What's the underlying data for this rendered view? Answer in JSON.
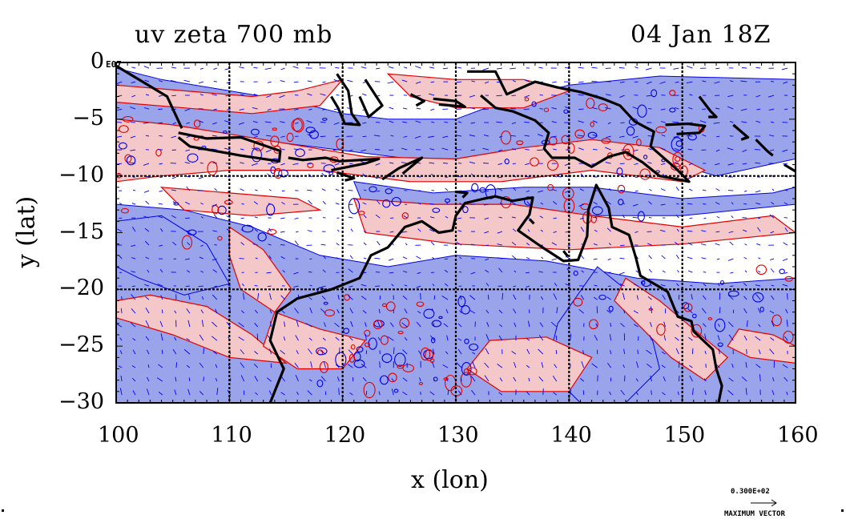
{
  "title_left": "uv zeta 700 mb",
  "title_right": "04 Jan 18Z",
  "xlabel": "x (lon)",
  "ylabel": "y (lat)",
  "corner_tag": "E07",
  "x_ticks": [
    "100",
    "110",
    "120",
    "130",
    "140",
    "150",
    "160"
  ],
  "y_ticks": [
    "0",
    "−5",
    "−10",
    "−15",
    "−20",
    "−25",
    "−30"
  ],
  "vector_legend": {
    "value": "0.300E+02",
    "label": "MAXIMUM VECTOR"
  },
  "colors": {
    "positive_fill": "#f4c8c8",
    "positive_contour": "#e00000",
    "negative_fill": "#9aa4ea",
    "negative_contour": "#0000e6",
    "vectors": "#0000ff",
    "coastline": "#000000",
    "grid": "#000000"
  },
  "chart_data": {
    "type": "map",
    "title": "uv zeta 700 mb",
    "subtitle": "04 Jan 18Z",
    "xlabel": "x (lon)",
    "ylabel": "y (lat)",
    "xlim": [
      100,
      160
    ],
    "ylim": [
      -30,
      0
    ],
    "x_ticks": [
      100,
      110,
      120,
      130,
      140,
      150,
      160
    ],
    "y_ticks": [
      0,
      -5,
      -10,
      -15,
      -20,
      -25,
      -30
    ],
    "grid_lon": [
      110,
      120,
      130,
      140,
      150
    ],
    "grid_lat": [
      -10,
      -20
    ],
    "fields": [
      "wind vectors (u,v)",
      "relative vorticity (zeta) contours, shaded"
    ],
    "max_vector": "0.300E+02"
  }
}
